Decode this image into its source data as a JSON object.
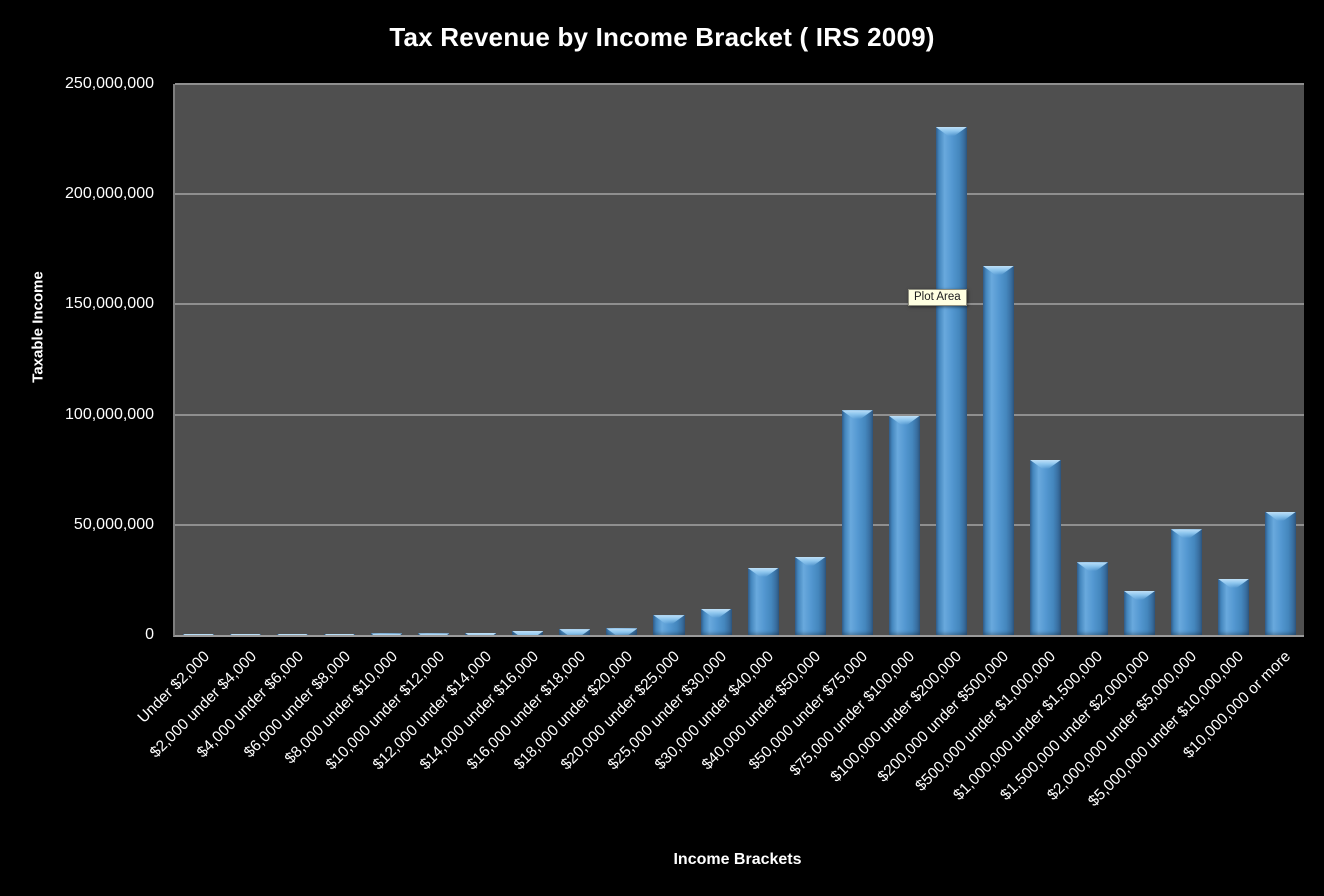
{
  "window": {
    "background": "#000000"
  },
  "tooltip": {
    "label": "Plot Area"
  },
  "chart_data": {
    "type": "bar",
    "title": "Tax Revenue by Income Bracket ( IRS 2009)",
    "xlabel": "Income Brackets",
    "ylabel": "Taxable Income",
    "ylim": [
      0,
      250000000
    ],
    "grid": true,
    "legend": false,
    "y_ticks": [
      0,
      50000000,
      100000000,
      150000000,
      200000000,
      250000000
    ],
    "y_tick_labels": [
      "0",
      "50,000,000",
      "100,000,000",
      "150,000,000",
      "200,000,000",
      "250,000,000"
    ],
    "categories": [
      "Under $2,000",
      "$2,000 under $4,000",
      "$4,000 under $6,000",
      "$6,000 under $8,000",
      "$8,000 under $10,000",
      "$10,000 under $12,000",
      "$12,000 under $14,000",
      "$14,000 under $16,000",
      "$16,000 under $18,000",
      "$18,000 under $20,000",
      "$20,000 under $25,000",
      "$25,000 under $30,000",
      "$30,000 under $40,000",
      "$40,000 under $50,000",
      "$50,000 under $75,000",
      "$75,000 under $100,000",
      "$100,000 under $200,000",
      "$200,000 under $500,000",
      "$500,000 under $1,000,000",
      "$1,000,000 under $1,500,000",
      "$1,500,000 under $2,000,000",
      "$2,000,000 under $5,000,000",
      "$5,000,000 under $10,000,000",
      "$10,000,000 or more"
    ],
    "values": [
      500000,
      550000,
      600000,
      650000,
      700000,
      750000,
      900000,
      1800000,
      2700000,
      3000000,
      9000000,
      12000000,
      30500000,
      35500000,
      102000000,
      99500000,
      230500000,
      167500000,
      79500000,
      33000000,
      20000000,
      48000000,
      25500000,
      56000000
    ],
    "colors": {
      "bar": "#5599d2",
      "bar_edge": "#36689a",
      "plot_background": "#4f4f4f",
      "gridline": "#8f8f8f",
      "text": "#ffffff",
      "tooltip_background": "#ffffe1",
      "canvas_background": "#000000"
    }
  }
}
